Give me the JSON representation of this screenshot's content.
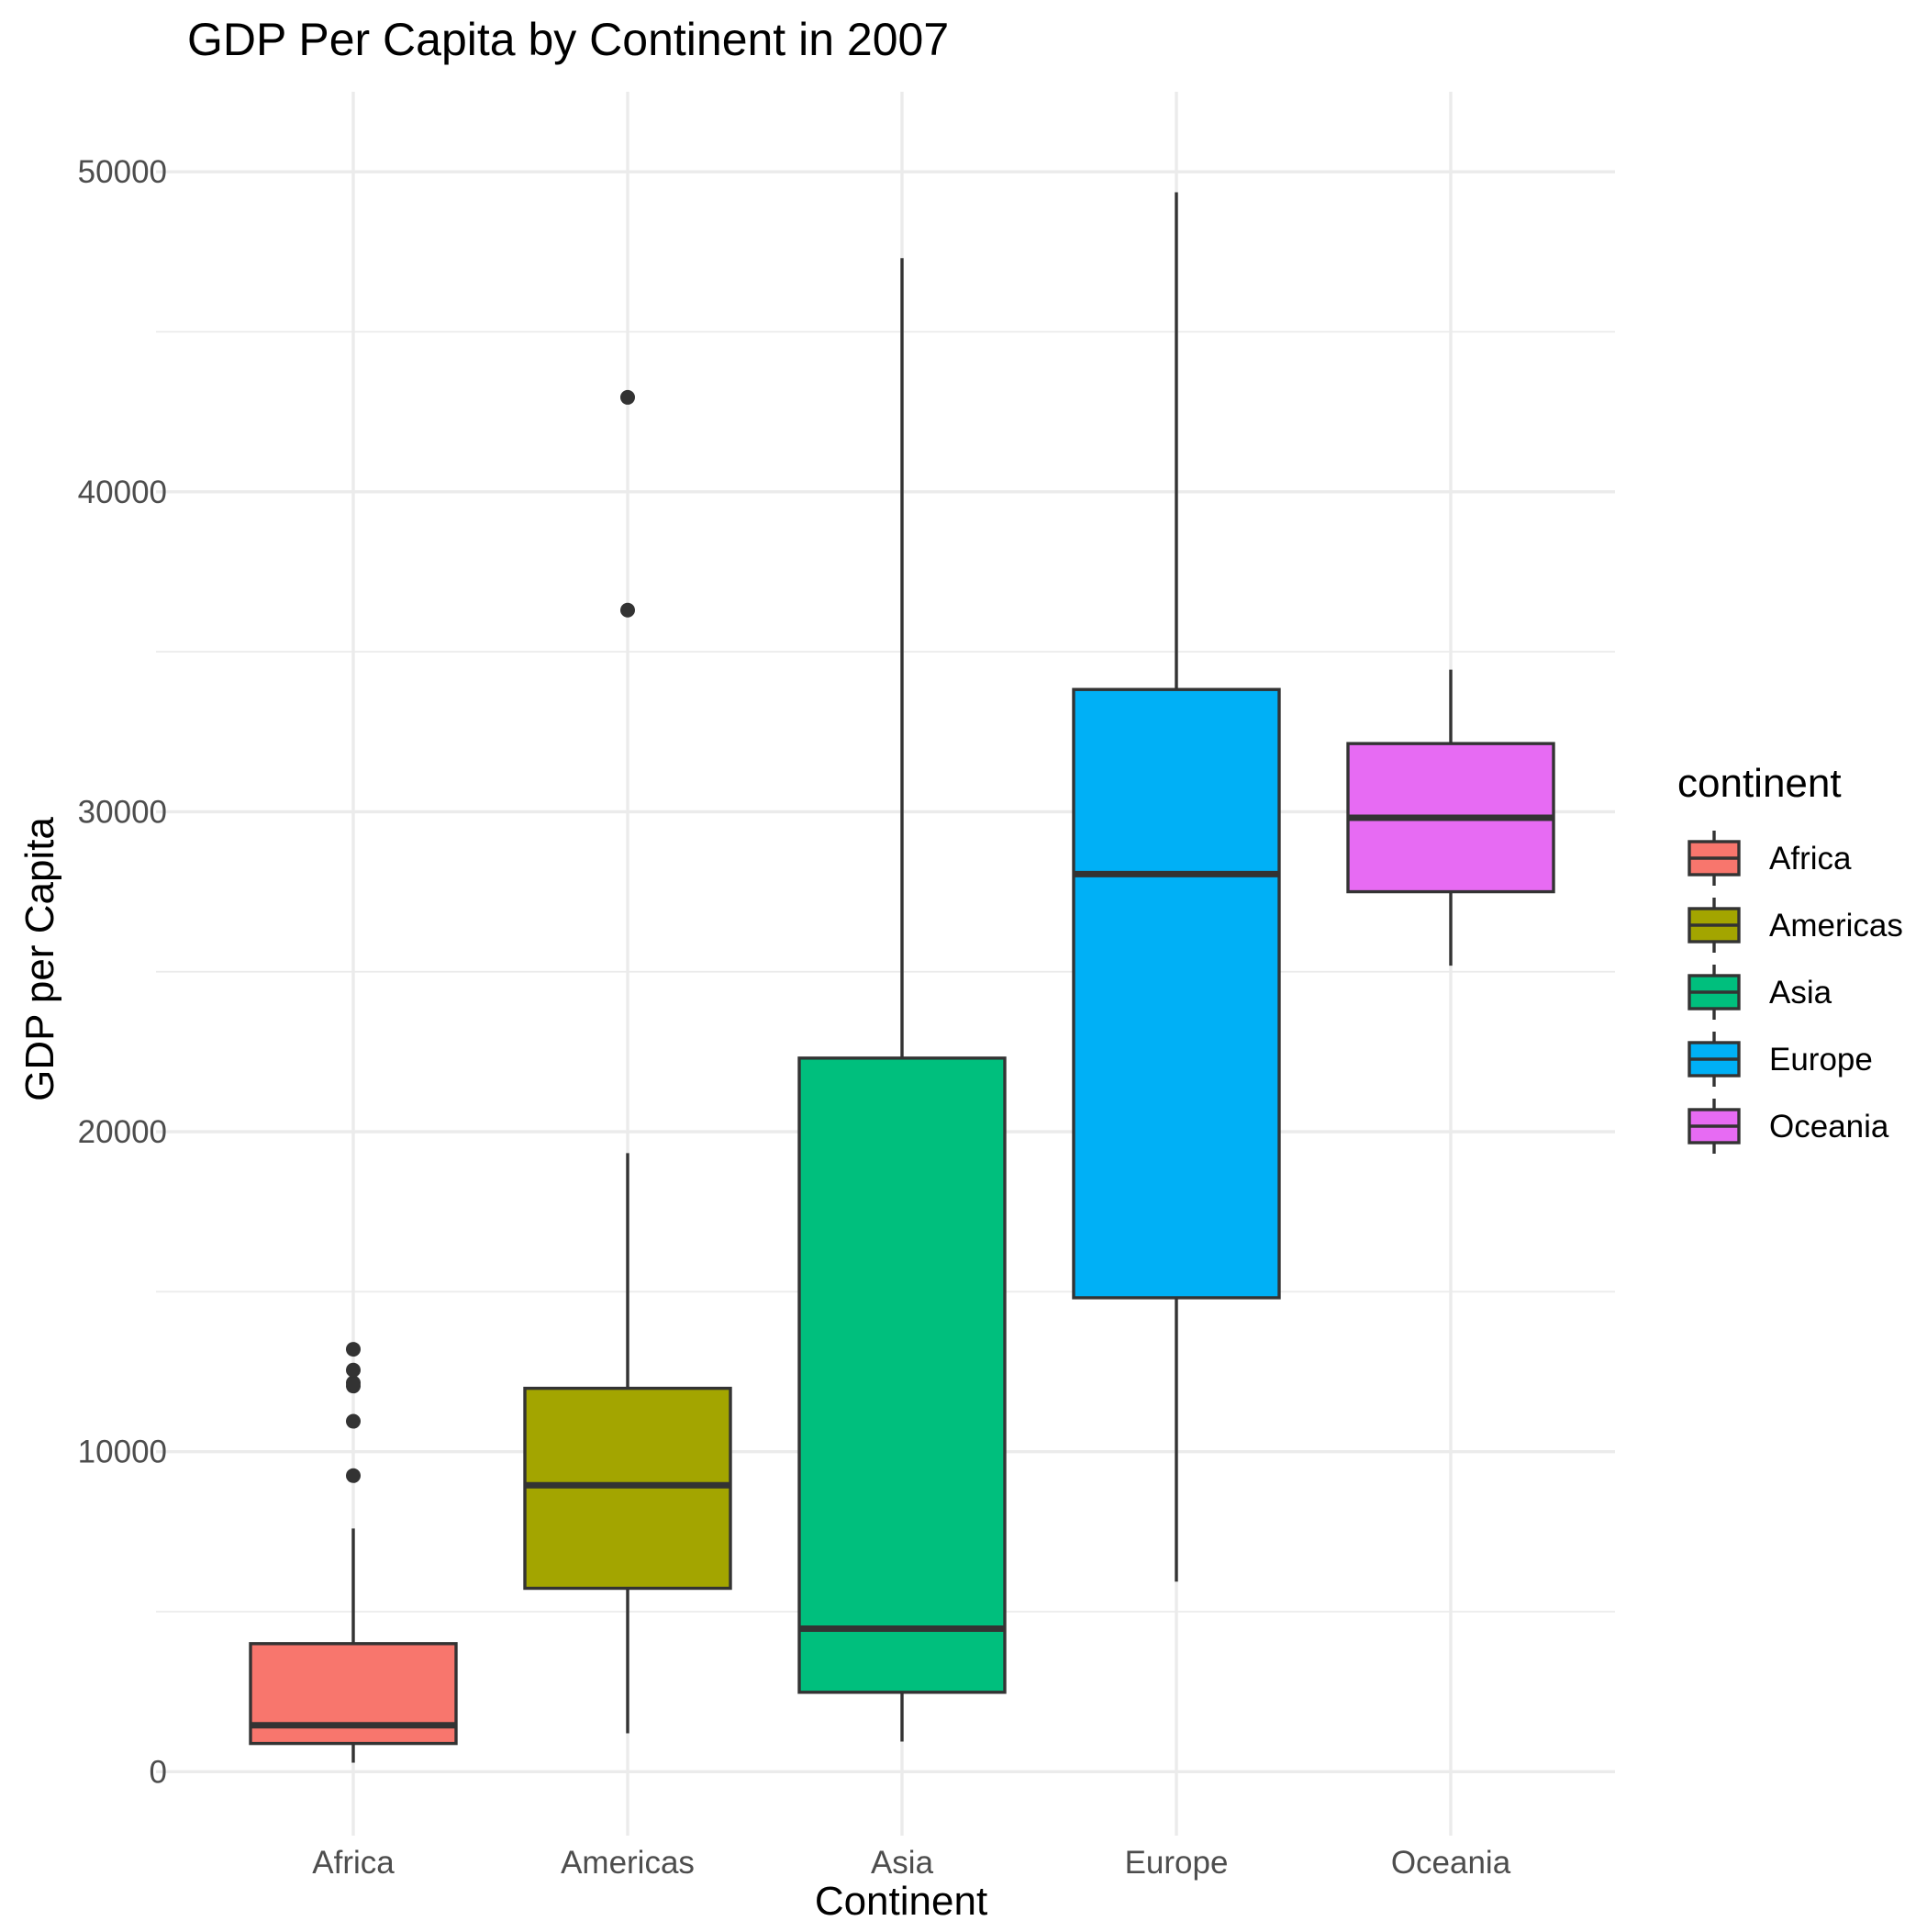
{
  "chart_data": {
    "type": "box",
    "title": "GDP Per Capita by Continent in 2007",
    "xlabel": "Continent",
    "ylabel": "GDP per Capita",
    "ylim": [
      -2000,
      52500
    ],
    "yticks": [
      0,
      10000,
      20000,
      30000,
      40000,
      50000
    ],
    "ytick_labels": [
      "0",
      "10000",
      "20000",
      "30000",
      "40000",
      "50000"
    ],
    "yminor": [
      5000,
      15000,
      25000,
      35000,
      45000
    ],
    "grid": true,
    "legend": {
      "title": "continent",
      "position": "right"
    },
    "categories": [
      "Africa",
      "Americas",
      "Asia",
      "Europe",
      "Oceania"
    ],
    "series": [
      {
        "name": "Africa",
        "color": "#F8766D",
        "whisker_low": 280,
        "q1": 880,
        "median": 1450,
        "q3": 4000,
        "whisker_high": 7600,
        "outliers": [
          9250,
          10950,
          12050,
          12150,
          12550,
          13200
        ]
      },
      {
        "name": "Americas",
        "color": "#A3A500",
        "whisker_low": 1200,
        "q1": 5730,
        "median": 8950,
        "q3": 11980,
        "whisker_high": 19330,
        "outliers": [
          36300,
          42950
        ]
      },
      {
        "name": "Asia",
        "color": "#00BF7D",
        "whisker_low": 940,
        "q1": 2480,
        "median": 4470,
        "q3": 22300,
        "whisker_high": 47300,
        "outliers": []
      },
      {
        "name": "Europe",
        "color": "#00B0F6",
        "whisker_low": 5940,
        "q1": 14810,
        "median": 28050,
        "q3": 33820,
        "whisker_high": 49360,
        "outliers": []
      },
      {
        "name": "Oceania",
        "color": "#E76BF3",
        "whisker_low": 25190,
        "q1": 27500,
        "median": 29810,
        "q3": 32130,
        "whisker_high": 34440,
        "outliers": []
      }
    ]
  }
}
